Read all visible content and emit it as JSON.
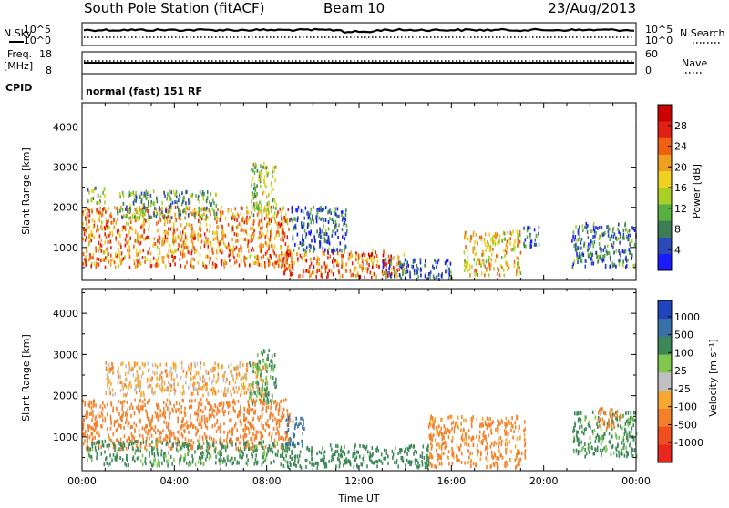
{
  "header": {
    "station": "South Pole Station (fitACF)",
    "beam": "Beam 10",
    "date": "23/Aug/2013"
  },
  "status_panels": {
    "nsky_label": "N.Sky",
    "nsearch_label": "N.Search",
    "noise_ticks_left": [
      "10^5",
      "10^0"
    ],
    "noise_ticks_right": [
      "10^5",
      "10^0"
    ],
    "freq_label_top": "Freq.",
    "freq_label_unit": "[MHz]",
    "freq_ticks": [
      "18",
      "8"
    ],
    "nave_label": "Nave",
    "nave_ticks": [
      "60",
      "0"
    ],
    "cpid_label": "CPID",
    "cpid_text": "normal (fast) 151 RF"
  },
  "colors": {
    "power_scale": [
      "#1a1aff",
      "#2b49b8",
      "#3c7d55",
      "#58b040",
      "#a8d025",
      "#f0d020",
      "#f0a020",
      "#f06010",
      "#e02010",
      "#cc0000"
    ],
    "velocity_scale": [
      "#e8281c",
      "#f05020",
      "#f4802c",
      "#f8a830",
      "#c0c0c0",
      "#7ec850",
      "#3c8858",
      "#3a70a8",
      "#2244bb"
    ]
  },
  "chart_data": [
    {
      "type": "heatmap",
      "quantity": "Power",
      "ylabel": "Slant Range [km]",
      "xlabel": "Time UT",
      "x_ticks": [
        "00:00",
        "04:00",
        "08:00",
        "12:00",
        "16:00",
        "20:00",
        "00:00"
      ],
      "xlim_hours": [
        0,
        24
      ],
      "ylim": [
        180,
        4600
      ],
      "y_ticks": [
        1000,
        2000,
        3000,
        4000
      ],
      "colorbar_label": "Power [dB]",
      "colorbar_ticks": [
        4,
        8,
        12,
        16,
        20,
        24,
        28
      ],
      "colorbar_range": [
        0,
        32
      ],
      "scatter_regions": [
        {
          "t_start": 0.0,
          "t_end": 9.0,
          "r_min": 500,
          "r_max": 2000,
          "level": 22
        },
        {
          "t_start": 0.2,
          "t_end": 1.0,
          "r_min": 2100,
          "r_max": 2500,
          "level": 12
        },
        {
          "t_start": 1.5,
          "t_end": 5.8,
          "r_min": 1700,
          "r_max": 2400,
          "level": 10
        },
        {
          "t_start": 7.3,
          "t_end": 8.4,
          "r_min": 1800,
          "r_max": 3100,
          "level": 14
        },
        {
          "t_start": 8.6,
          "t_end": 14.0,
          "r_min": 250,
          "r_max": 900,
          "level": 24
        },
        {
          "t_start": 9.0,
          "t_end": 11.5,
          "r_min": 900,
          "r_max": 2000,
          "level": 6
        },
        {
          "t_start": 13.0,
          "t_end": 16.0,
          "r_min": 200,
          "r_max": 700,
          "level": 6
        },
        {
          "t_start": 16.5,
          "t_end": 19.0,
          "r_min": 300,
          "r_max": 1400,
          "level": 18
        },
        {
          "t_start": 19.0,
          "t_end": 19.8,
          "r_min": 1000,
          "r_max": 1500,
          "level": 6
        },
        {
          "t_start": 21.2,
          "t_end": 24.0,
          "r_min": 500,
          "r_max": 1600,
          "level": 8
        }
      ]
    },
    {
      "type": "heatmap",
      "quantity": "Velocity",
      "ylabel": "Slant Range [km]",
      "xlabel": "Time UT",
      "x_ticks": [
        "00:00",
        "04:00",
        "08:00",
        "12:00",
        "16:00",
        "20:00",
        "00:00"
      ],
      "xlim_hours": [
        0,
        24
      ],
      "ylim": [
        180,
        4600
      ],
      "y_ticks": [
        1000,
        2000,
        3000,
        4000
      ],
      "colorbar_label": "Velocity [m s⁻¹]",
      "colorbar_ticks": [
        "1000",
        "500",
        "100",
        "25",
        "-25",
        "-100",
        "-500",
        "-1000"
      ],
      "scatter_regions": [
        {
          "t_start": 0.0,
          "t_end": 9.0,
          "r_min": 700,
          "r_max": 1900,
          "level": -300
        },
        {
          "t_start": 0.2,
          "t_end": 9.0,
          "r_min": 300,
          "r_max": 900,
          "level": 150
        },
        {
          "t_start": 1.0,
          "t_end": 8.0,
          "r_min": 2000,
          "r_max": 2800,
          "level": -60
        },
        {
          "t_start": 7.2,
          "t_end": 8.4,
          "r_min": 1800,
          "r_max": 3100,
          "level": 120
        },
        {
          "t_start": 8.6,
          "t_end": 15.0,
          "r_min": 250,
          "r_max": 800,
          "level": 200
        },
        {
          "t_start": 8.8,
          "t_end": 9.6,
          "r_min": 800,
          "r_max": 1500,
          "level": 600
        },
        {
          "t_start": 15.0,
          "t_end": 19.2,
          "r_min": 250,
          "r_max": 1500,
          "level": -150
        },
        {
          "t_start": 21.2,
          "t_end": 24.0,
          "r_min": 500,
          "r_max": 1600,
          "level": 150
        },
        {
          "t_start": 22.3,
          "t_end": 23.3,
          "r_min": 1200,
          "r_max": 1700,
          "level": -300
        }
      ]
    }
  ]
}
